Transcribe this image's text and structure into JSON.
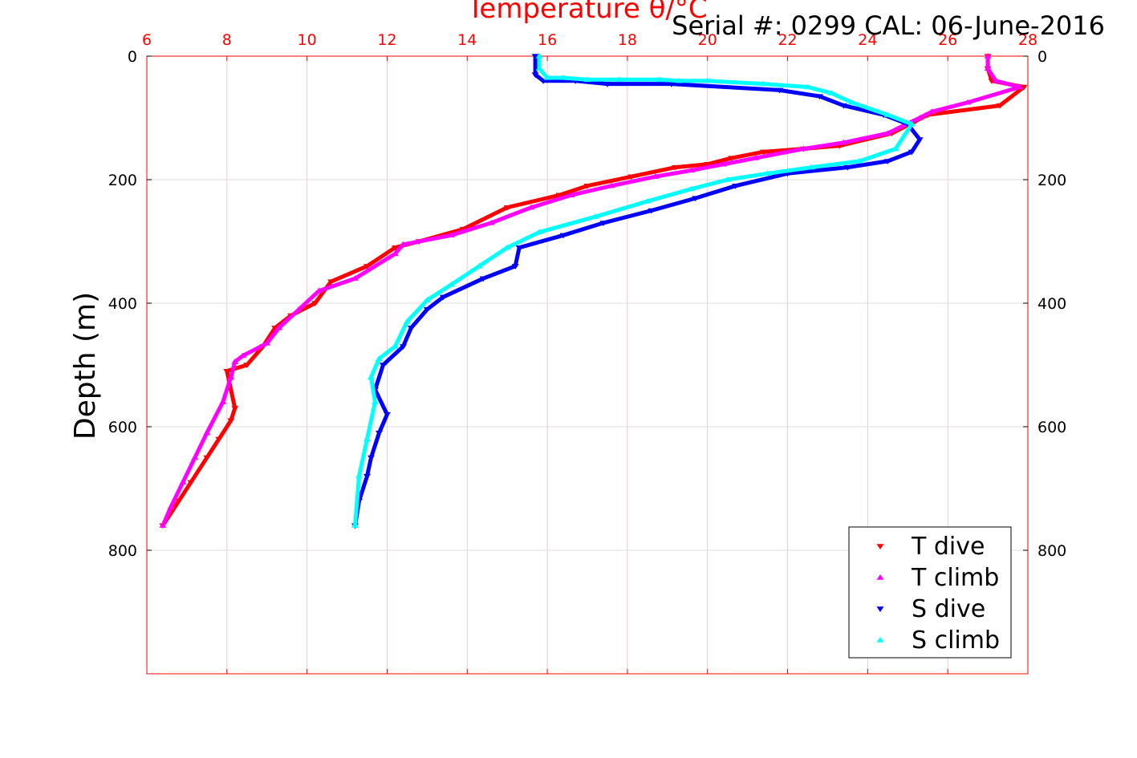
{
  "chart_data": {
    "type": "scatter",
    "title": "Temperature θ/°C",
    "subtitle": "Serial #: 0299 CAL: 06-June-2016",
    "xlabel": "Temperature θ/°C",
    "ylabel": "Depth (m)",
    "xlim": [
      6,
      28
    ],
    "ylim": [
      1000,
      0
    ],
    "y_reversed": true,
    "xticks": [
      "6",
      "8",
      "10",
      "12",
      "14",
      "16",
      "18",
      "20",
      "22",
      "24",
      "26",
      "28"
    ],
    "yticks": [
      "0",
      "200",
      "400",
      "600",
      "800"
    ],
    "grid": true,
    "legend_position": "bottom-right",
    "series": [
      {
        "name": "T dive",
        "marker": "triangle-down",
        "color": "#ff0000",
        "x": [
          27.0,
          27.0,
          27.1,
          27.9,
          27.3,
          25.5,
          25.2,
          24.6,
          23.3,
          22.4,
          21.4,
          20.6,
          20.0,
          19.2,
          18.1,
          17.0,
          16.3,
          15.0,
          13.9,
          12.8,
          12.2,
          11.5,
          10.6,
          10.2,
          9.6,
          9.2,
          8.9,
          8.5,
          8.0,
          8.2,
          8.1,
          7.8,
          7.5,
          7.1,
          6.8,
          6.6,
          6.4
        ],
        "y": [
          0,
          20,
          40,
          50,
          80,
          95,
          105,
          125,
          145,
          150,
          155,
          165,
          175,
          180,
          195,
          210,
          225,
          245,
          280,
          300,
          310,
          340,
          365,
          400,
          420,
          440,
          470,
          500,
          510,
          570,
          590,
          620,
          650,
          690,
          720,
          740,
          760
        ]
      },
      {
        "name": "T climb",
        "marker": "triangle-up",
        "color": "#ff00ff",
        "x": [
          27.0,
          27.0,
          27.2,
          27.8,
          26.5,
          25.6,
          25.3,
          24.5,
          23.4,
          22.4,
          21.2,
          20.4,
          19.6,
          18.7,
          17.6,
          16.6,
          15.6,
          14.6,
          13.6,
          12.4,
          12.2,
          11.2,
          10.3,
          9.8,
          9.3,
          9.0,
          8.4,
          8.2,
          8.1,
          7.9,
          7.5,
          7.2,
          6.9,
          6.6,
          6.4
        ],
        "y": [
          0,
          20,
          40,
          50,
          75,
          90,
          100,
          125,
          140,
          150,
          165,
          175,
          185,
          195,
          210,
          225,
          245,
          270,
          290,
          305,
          320,
          360,
          380,
          410,
          440,
          465,
          485,
          495,
          520,
          560,
          610,
          650,
          690,
          730,
          760
        ]
      },
      {
        "name": "S dive",
        "marker": "triangle-down",
        "color": "#0000ff",
        "x": [
          15.7,
          15.7,
          15.9,
          16.7,
          17.5,
          19.1,
          21.8,
          22.8,
          23.4,
          24.4,
          25.0,
          25.3,
          25.1,
          24.5,
          23.5,
          22.0,
          20.7,
          19.7,
          18.6,
          17.4,
          16.4,
          15.3,
          15.2,
          14.4,
          13.4,
          13.0,
          12.6,
          12.4,
          11.9,
          11.7,
          12.0,
          11.8,
          11.6,
          11.5,
          11.3,
          11.2
        ],
        "y": [
          0,
          30,
          40,
          40,
          45,
          45,
          55,
          65,
          80,
          95,
          110,
          135,
          155,
          170,
          180,
          190,
          210,
          230,
          250,
          270,
          290,
          310,
          340,
          360,
          390,
          410,
          440,
          470,
          500,
          540,
          580,
          610,
          650,
          680,
          720,
          760
        ]
      },
      {
        "name": "S climb",
        "marker": "triangle-up",
        "color": "#00ffff",
        "x": [
          15.8,
          15.8,
          16.0,
          16.4,
          17.0,
          17.8,
          18.8,
          19.3,
          20.0,
          21.4,
          22.5,
          23.1,
          23.6,
          24.5,
          25.1,
          24.7,
          23.8,
          22.6,
          21.5,
          20.5,
          19.6,
          18.5,
          17.2,
          15.8,
          15.0,
          14.3,
          13.6,
          13.0,
          12.5,
          12.2,
          11.8,
          11.6,
          11.7,
          11.5,
          11.3,
          11.2
        ],
        "y": [
          0,
          20,
          35,
          35,
          38,
          38,
          38,
          40,
          40,
          45,
          50,
          60,
          75,
          95,
          110,
          150,
          170,
          180,
          190,
          200,
          215,
          235,
          260,
          285,
          310,
          340,
          370,
          395,
          430,
          470,
          490,
          520,
          560,
          620,
          680,
          760
        ]
      }
    ]
  }
}
